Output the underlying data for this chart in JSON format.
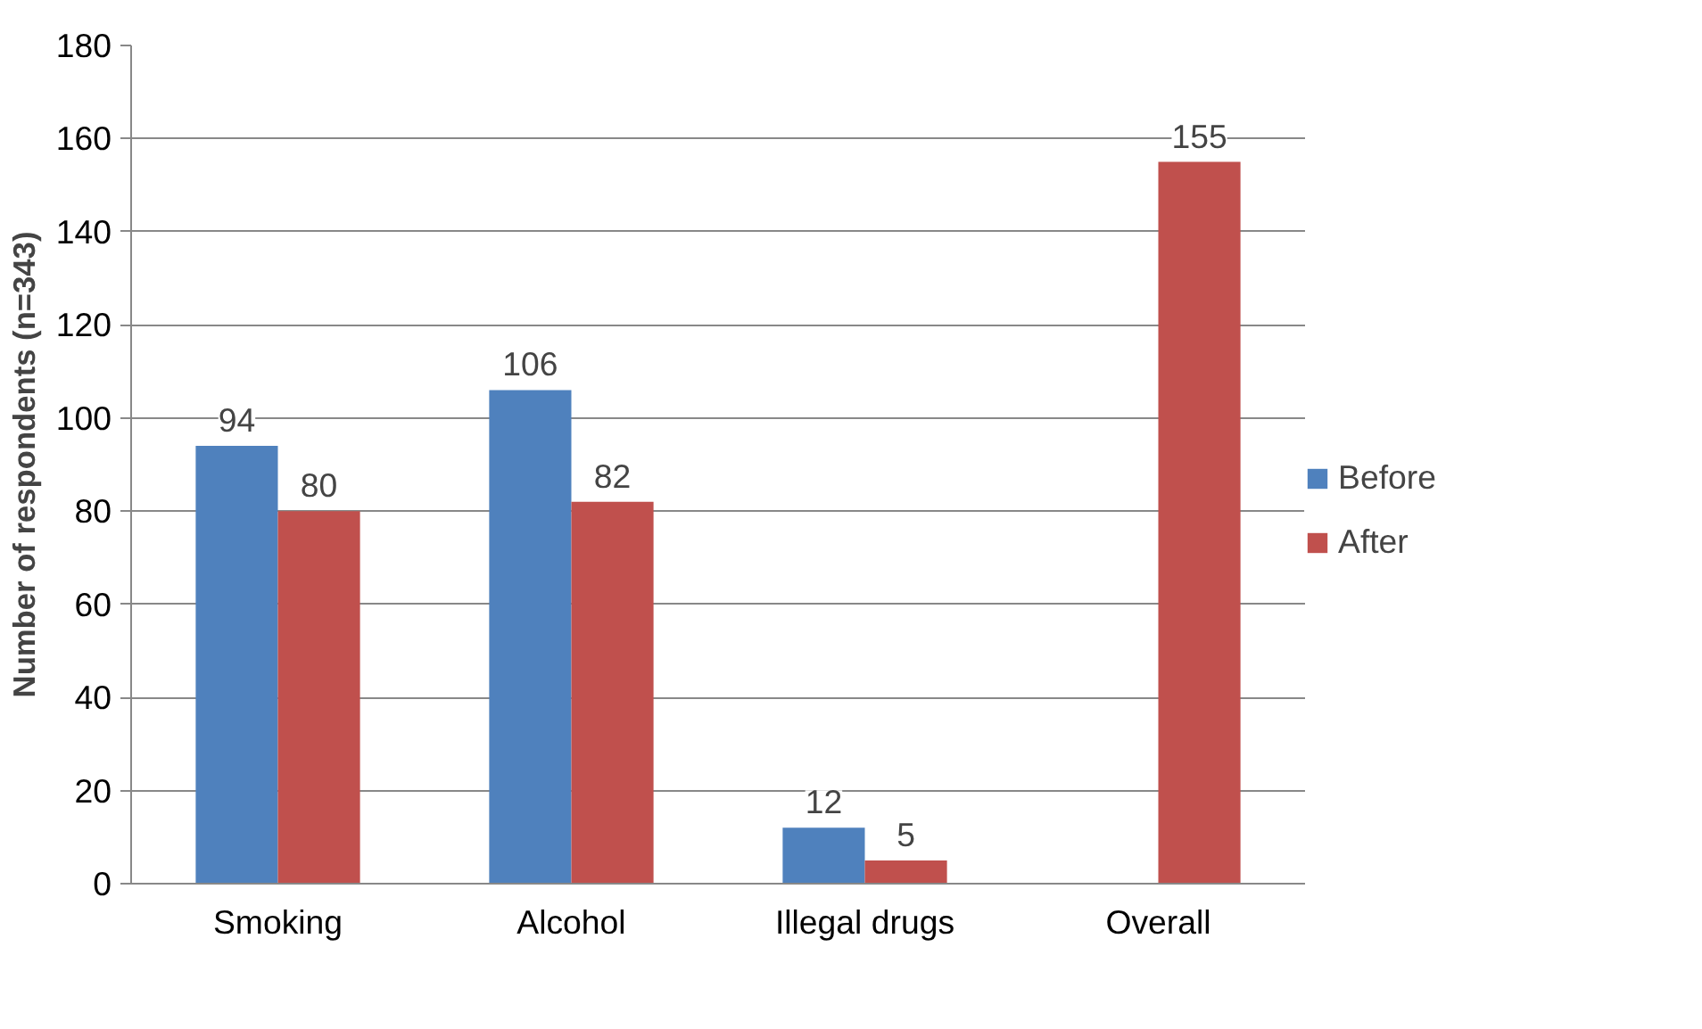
{
  "chart_data": {
    "type": "bar",
    "ylabel": "Number of respondents (n=343)",
    "categories": [
      "Smoking",
      "Alcohol",
      "Illegal drugs",
      "Overall"
    ],
    "series": [
      {
        "name": "Before",
        "color": "#4f81bd",
        "values": [
          94,
          106,
          12,
          null
        ]
      },
      {
        "name": "After",
        "color": "#c0504d",
        "values": [
          80,
          82,
          5,
          155
        ]
      }
    ],
    "ylim": [
      0,
      180
    ],
    "yticks": [
      0,
      20,
      40,
      60,
      80,
      100,
      120,
      140,
      160,
      180
    ],
    "grid": "y",
    "legend": "right",
    "data_labels": true
  }
}
